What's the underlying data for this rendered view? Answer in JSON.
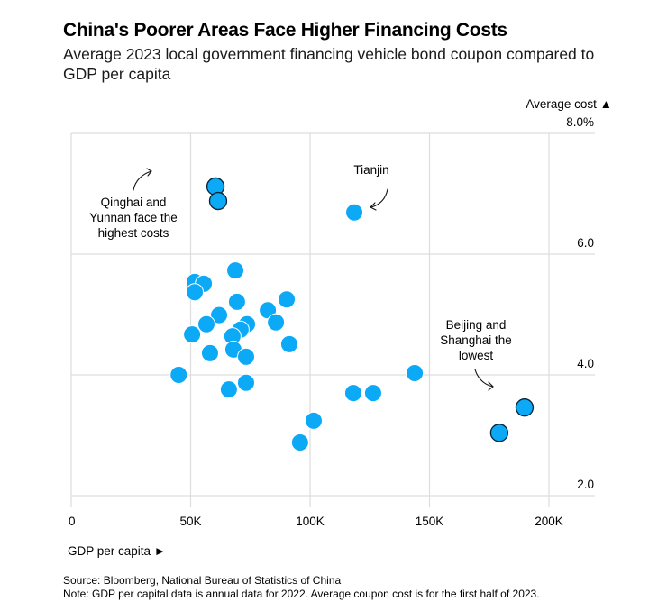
{
  "header": {
    "title": "China's Poorer Areas Face Higher Financing Costs",
    "subtitle": "Average 2023 local government financing vehicle bond coupon compared to GDP per capita"
  },
  "footer": {
    "source": "Source: Bloomberg, National Bureau of Statistics of China",
    "note": "Note: GDP per capital data is annual data for 2022. Average coupon cost is for the first half of 2023."
  },
  "colors": {
    "point": "#0ba9f6",
    "highlight_stroke": "#0a2233",
    "grid": "#dddddd"
  },
  "chart_data": {
    "type": "scatter",
    "title": "China's Poorer Areas Face Higher Financing Costs",
    "subtitle": "Average 2023 local government financing vehicle bond coupon compared to GDP per capita",
    "xlabel": "GDP per capita ►",
    "ylabel": "Average cost ▲",
    "xlim": [
      0,
      217000
    ],
    "ylim": [
      2.0,
      8.0
    ],
    "x_ticks": [
      0,
      50000,
      100000,
      150000,
      200000
    ],
    "x_tick_labels": [
      "0",
      "50K",
      "100K",
      "150K",
      "200K"
    ],
    "y_ticks": [
      8.0,
      6.0,
      4.0,
      2.0
    ],
    "y_tick_labels": [
      "8.0%",
      "6.0",
      "4.0",
      "2.0"
    ],
    "grid": true,
    "y_axis_position": "right",
    "points": [
      {
        "x": 60400,
        "y": 7.12,
        "highlight": true,
        "label": "Qinghai"
      },
      {
        "x": 61500,
        "y": 6.88,
        "highlight": true,
        "label": "Yunnan"
      },
      {
        "x": 118500,
        "y": 6.69,
        "highlight": false,
        "label": "Tianjin"
      },
      {
        "x": 68700,
        "y": 5.73,
        "highlight": false
      },
      {
        "x": 51700,
        "y": 5.54,
        "highlight": false
      },
      {
        "x": 55500,
        "y": 5.51,
        "highlight": false
      },
      {
        "x": 51700,
        "y": 5.37,
        "highlight": false
      },
      {
        "x": 69400,
        "y": 5.21,
        "highlight": false
      },
      {
        "x": 90200,
        "y": 5.25,
        "highlight": false
      },
      {
        "x": 82300,
        "y": 5.07,
        "highlight": false
      },
      {
        "x": 85700,
        "y": 4.87,
        "highlight": false
      },
      {
        "x": 61900,
        "y": 4.99,
        "highlight": false
      },
      {
        "x": 56600,
        "y": 4.84,
        "highlight": false
      },
      {
        "x": 73600,
        "y": 4.84,
        "highlight": false
      },
      {
        "x": 70900,
        "y": 4.75,
        "highlight": false
      },
      {
        "x": 50600,
        "y": 4.67,
        "highlight": false
      },
      {
        "x": 67500,
        "y": 4.64,
        "highlight": false
      },
      {
        "x": 91300,
        "y": 4.51,
        "highlight": false
      },
      {
        "x": 58100,
        "y": 4.36,
        "highlight": false
      },
      {
        "x": 67900,
        "y": 4.42,
        "highlight": false
      },
      {
        "x": 73200,
        "y": 4.3,
        "highlight": false
      },
      {
        "x": 45000,
        "y": 4.0,
        "highlight": false
      },
      {
        "x": 73200,
        "y": 3.87,
        "highlight": false
      },
      {
        "x": 66000,
        "y": 3.76,
        "highlight": false
      },
      {
        "x": 143800,
        "y": 4.03,
        "highlight": false
      },
      {
        "x": 118100,
        "y": 3.7,
        "highlight": false
      },
      {
        "x": 126400,
        "y": 3.7,
        "highlight": false
      },
      {
        "x": 101500,
        "y": 3.24,
        "highlight": false
      },
      {
        "x": 95800,
        "y": 2.88,
        "highlight": false
      },
      {
        "x": 189800,
        "y": 3.46,
        "highlight": true,
        "label": "Beijing"
      },
      {
        "x": 179200,
        "y": 3.04,
        "highlight": true,
        "label": "Shanghai"
      }
    ],
    "annotations": [
      {
        "name": "qinghai-yunnan",
        "lines": [
          "Qinghai and",
          "Yunnan face the",
          "highest costs"
        ]
      },
      {
        "name": "tianjin",
        "lines": [
          "Tianjin"
        ]
      },
      {
        "name": "beijing-shanghai",
        "lines": [
          "Beijing and",
          "Shanghai the",
          "lowest"
        ]
      }
    ]
  }
}
